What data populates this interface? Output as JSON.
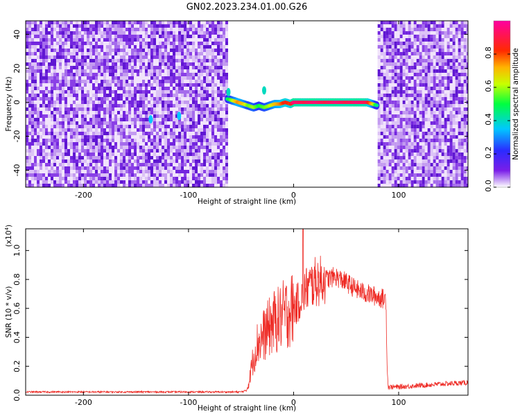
{
  "title": "GN02.2023.234.01.00.G26",
  "chart_data": [
    {
      "type": "heatmap",
      "xlabel": "Height of straight line (km)",
      "ylabel": "Frequency (Hz)",
      "xlim": [
        -255,
        166
      ],
      "ylim": [
        -50,
        48
      ],
      "xticks": [
        -200,
        -100,
        0,
        100
      ],
      "yticks": [
        -40,
        -20,
        0,
        20,
        40
      ],
      "noise_regions": [
        [
          -255,
          -63
        ],
        [
          80,
          166
        ]
      ],
      "clean_region": [
        -63,
        80
      ],
      "signal_trace": {
        "x": [
          -63,
          -58,
          -53,
          -48,
          -43,
          -38,
          -33,
          -28,
          -23,
          -18,
          -13,
          -8,
          -3,
          0,
          10,
          20,
          30,
          40,
          50,
          60,
          70,
          75,
          80
        ],
        "y": [
          2,
          1,
          0,
          -1,
          -2,
          -3,
          -2,
          -3,
          -2,
          -1,
          -1,
          0,
          -1,
          0,
          0,
          0,
          0,
          0,
          0,
          0,
          0,
          -1,
          -2
        ],
        "amplitude": [
          0.45,
          0.6,
          0.75,
          0.7,
          0.55,
          0.6,
          0.5,
          0.55,
          0.6,
          0.7,
          0.75,
          0.85,
          0.8,
          0.95,
          0.9,
          0.95,
          0.9,
          0.95,
          0.9,
          0.95,
          0.9,
          0.7,
          0.4
        ]
      },
      "spots": [
        {
          "x": -136,
          "y": -10,
          "amplitude": 0.35
        },
        {
          "x": -109,
          "y": -8,
          "amplitude": 0.35
        },
        {
          "x": -28,
          "y": 7,
          "amplitude": 0.4
        },
        {
          "x": -62,
          "y": 6,
          "amplitude": 0.4
        }
      ]
    },
    {
      "type": "line",
      "xlabel": "Height of straight line (km)",
      "ylabel": "SNR (10 * v/v)",
      "yscale_label": "(x10",
      "yscale_exp": "4",
      "yscale_close": ")",
      "xlim": [
        -255,
        166
      ],
      "ylim": [
        0,
        1.15
      ],
      "xticks": [
        -200,
        -100,
        0,
        100
      ],
      "yticks": [
        0.0,
        0.2,
        0.4,
        0.6,
        0.8,
        1.0
      ],
      "ytick_labels": [
        "0.0",
        "0.2",
        "0.4",
        "0.6",
        "0.8",
        "1.0"
      ],
      "series": [
        {
          "x": [
            -255,
            -200,
            -100,
            -50,
            -45,
            -42,
            -40,
            -35,
            -30,
            -25,
            -20,
            -15,
            -10,
            -5,
            0,
            5,
            9,
            10,
            15,
            20,
            30,
            40,
            50,
            60,
            70,
            80,
            88,
            89,
            90,
            100,
            120,
            140,
            166
          ],
          "y": [
            0.02,
            0.02,
            0.02,
            0.02,
            0.03,
            0.1,
            0.2,
            0.35,
            0.4,
            0.45,
            0.5,
            0.52,
            0.55,
            0.58,
            0.6,
            0.65,
            0.7,
            0.72,
            0.75,
            0.78,
            0.8,
            0.82,
            0.78,
            0.73,
            0.7,
            0.68,
            0.66,
            0.2,
            0.05,
            0.05,
            0.06,
            0.07,
            0.08
          ]
        }
      ],
      "line_color": "#ee2a24"
    }
  ],
  "colorbar": {
    "label": "Normalized spectral amplitude",
    "ticks": [
      "0.0",
      "0.2",
      "0.4",
      "0.6",
      "0.8"
    ],
    "tick_values": [
      0.0,
      0.2,
      0.4,
      0.6,
      0.8
    ],
    "range": [
      0,
      1
    ]
  }
}
